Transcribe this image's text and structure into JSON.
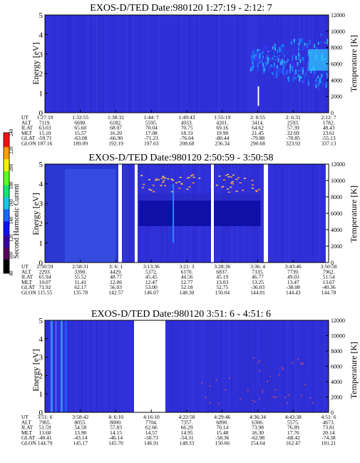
{
  "chart_data": [
    {
      "type": "heatmap",
      "title": "EXOS-D/TED   Date:980120  1:27:19 - 2:12: 7",
      "ylabel": "Energy [eV]",
      "y2label": "Temperature [K]",
      "ylim": [
        0,
        5
      ],
      "y2lim": [
        0,
        12000
      ],
      "yticks": [
        "0",
        "1",
        "2",
        "3",
        "4",
        "5"
      ],
      "y2ticks": [
        "0",
        "2000",
        "4000",
        "6000",
        "8000",
        "10000",
        "12000"
      ],
      "row_labels": [
        "UT",
        "ALT",
        "ILAT",
        "MLT",
        "GLAT",
        "GLON"
      ],
      "columns": [
        [
          "1:27:19",
          "7119.",
          "63.03",
          "15.10",
          "-59.71",
          "187.16"
        ],
        [
          "1:32:55",
          "6690.",
          "65.60",
          "15.57",
          "-63.08",
          "189.09"
        ],
        [
          "1:38:31",
          "6182.",
          "68.07",
          "16.20",
          "-66.90",
          "192.19"
        ],
        [
          "1:44: 7",
          "5595.",
          "70.04",
          "17.08",
          "-71.23",
          "197.63"
        ],
        [
          "1:49:43",
          "4933.",
          "70.75",
          "18.33",
          "-76.04",
          "208.68"
        ],
        [
          "1:55:19",
          "4201.",
          "69.16",
          "19.90",
          "-80.44",
          "236.34"
        ],
        [
          "2: 0:55",
          "3414.",
          "64.62",
          "21.45",
          "-79.88",
          "290.68"
        ],
        [
          "2: 6:31",
          "2593.",
          "57.39",
          "22.69",
          "-70.85",
          "323.92"
        ],
        [
          "2:12: 7",
          "1782.",
          "48.43",
          "23.61",
          "-55.13",
          "337.13"
        ]
      ]
    },
    {
      "type": "heatmap",
      "title": "EXOS-D/TED   Date:980120  2:50:59 - 3:50:58",
      "ylabel": "Energy [eV]",
      "y2label": "Temperature [K]",
      "ylim": [
        0,
        5
      ],
      "y2lim": [
        0,
        12000
      ],
      "yticks": [
        "0",
        "1",
        "2",
        "3",
        "4",
        "5"
      ],
      "y2ticks": [
        "0",
        "2000",
        "4000",
        "6000",
        "8000",
        "10000",
        "12000"
      ],
      "row_labels": [
        "UT",
        "ALT",
        "ILAT",
        "MLT",
        "GLAT",
        "GLON"
      ],
      "columns": [
        [
          "2:50:59",
          "2293.",
          "65.94",
          "10.07",
          "71.92",
          "115.55"
        ],
        [
          "2:58:31",
          "3390.",
          "55.52",
          "11.41",
          "62.17",
          "135.78"
        ],
        [
          "3: 6: 1",
          "4429.",
          "48.77",
          "12.06",
          "56.03",
          "142.57"
        ],
        [
          "3:13:36",
          "5372.",
          "45.45",
          "12.47",
          "53.00",
          "146.07"
        ],
        [
          "3:21: 3",
          "6170.",
          "44.56",
          "12.77",
          "52.18",
          "148.30"
        ],
        [
          "3:28:36",
          "6837.",
          "45.19",
          "13.03",
          "52.75",
          "150.04"
        ],
        [
          "3:36: 4",
          "7335.",
          "46.77",
          "13.25",
          "-36.03",
          "144.01"
        ],
        [
          "3:43:46",
          "7739.",
          "49.03",
          "13.47",
          "-38.08",
          "144.43"
        ],
        [
          "3:50:58",
          "7962.",
          "51.54",
          "13.67",
          "-40.36",
          "144.78"
        ]
      ],
      "colorbar": {
        "label": "Second Harmonic Current",
        "ticks": [
          "80",
          "100",
          "120",
          "140",
          "160",
          "180",
          "200",
          "220",
          "240"
        ],
        "range": [
          80,
          240
        ]
      }
    },
    {
      "type": "heatmap",
      "title": "EXOS-D/TED   Date:980120  3:51: 6 - 4:51: 6",
      "ylabel": "Energy [eV]",
      "y2label": "Temperature [K]",
      "ylim": [
        0,
        5
      ],
      "y2lim": [
        0,
        12000
      ],
      "yticks": [
        "0",
        "1",
        "2",
        "3",
        "4",
        "5"
      ],
      "y2ticks": [
        "0",
        "2000",
        "4000",
        "6000",
        "8000",
        "10000",
        "12000"
      ],
      "row_labels": [
        "UT",
        "ALT",
        "ILAT",
        "MLT",
        "GLAT",
        "GLON"
      ],
      "columns": [
        [
          "3:51: 6",
          "7965.",
          "51.59",
          "13.68",
          "-40.41",
          "144.79"
        ],
        [
          "3:58:42",
          "8055.",
          "54.58",
          "13.90",
          "-43.14",
          "145.17"
        ],
        [
          "4: 6:10",
          "8000.",
          "57.83",
          "14.15",
          "-46.14",
          "145.70"
        ],
        [
          "4:16:10",
          "7704.",
          "62.66",
          "14.57",
          "-50.73",
          "146.91"
        ],
        [
          "4:22:58",
          "7357.",
          "66.29",
          "14.95",
          "-54.31",
          "148.33"
        ],
        [
          "4:29:46",
          "6890.",
          "70.14",
          "15.48",
          "-58.36",
          "150.66"
        ],
        [
          "4:36:34",
          "6306.",
          "73.98",
          "16.30",
          "-62.98",
          "154.64"
        ],
        [
          "4:43:38",
          "5575.",
          "76.89",
          "17.76",
          "-68.42",
          "162.47"
        ],
        [
          "4:51: 6",
          "4673.",
          "73.81",
          "20.14",
          "-74.38",
          "181.21"
        ]
      ]
    }
  ]
}
